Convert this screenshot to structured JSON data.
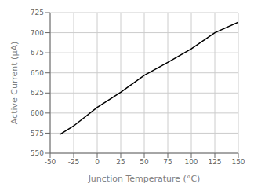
{
  "chart_data": {
    "type": "line",
    "x": [
      -40,
      -25,
      0,
      25,
      50,
      75,
      100,
      125,
      150
    ],
    "values": [
      573,
      584,
      607,
      626,
      647,
      663,
      680,
      700,
      713
    ],
    "xlabel": "Junction Temperature (°C)",
    "ylabel": "Active Current (µA)",
    "xlim": [
      -50,
      150
    ],
    "ylim": [
      550,
      725
    ],
    "xticks": [
      -50,
      -25,
      0,
      25,
      50,
      75,
      100,
      125,
      150
    ],
    "yticks": [
      550,
      575,
      600,
      625,
      650,
      675,
      700,
      725
    ],
    "grid": true,
    "color": "#000000"
  }
}
